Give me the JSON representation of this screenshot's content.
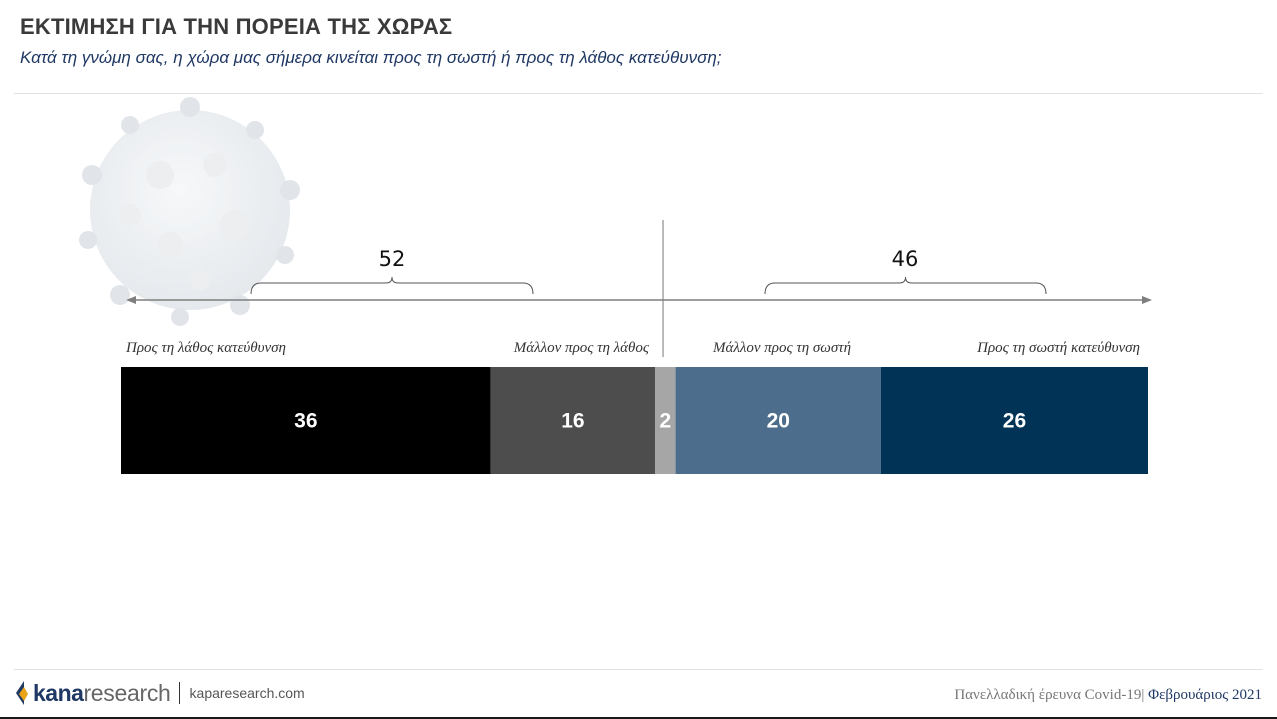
{
  "header": {
    "title": "ΕΚΤΙΜΗΣΗ ΓΙΑ ΤΗΝ ΠΟΡΕΙΑ ΤΗΣ ΧΩΡΑΣ",
    "subtitle": "Κατά τη γνώμη σας, η χώρα μας σήμερα κινείται προς τη σωστή ή προς τη λάθος κατεύθυνση;"
  },
  "chart_data": {
    "type": "bar",
    "orientation": "horizontal-stacked",
    "categories": [
      "Προς τη λάθος κατεύθυνση",
      "Μάλλον προς τη λάθος",
      "",
      "Μάλλον προς τη σωστή",
      "Προς τη σωστή κατεύθυνση"
    ],
    "values": [
      36,
      16,
      2,
      20,
      26
    ],
    "colors": [
      "#000000",
      "#4d4d4d",
      "#a6a6a6",
      "#4c6e8c",
      "#003356"
    ],
    "value_labels": [
      "36",
      "16",
      "2",
      "20",
      "26"
    ],
    "totals": [
      {
        "label": "52",
        "from_segment": 0,
        "to_segment": 1
      },
      {
        "label": "46",
        "from_segment": 3,
        "to_segment": 4
      }
    ],
    "legend": "none",
    "grid": false
  },
  "footer": {
    "brand_kana": "kana",
    "brand_research": "research",
    "website": "kaparesearch.com",
    "survey": "Πανελλαδική έρευνα Covid-19|",
    "month": "Φεβρουάριος 2021",
    "brand_color": "#1f3864",
    "logo_colors": [
      "#1f3864",
      "#e8a317"
    ]
  }
}
